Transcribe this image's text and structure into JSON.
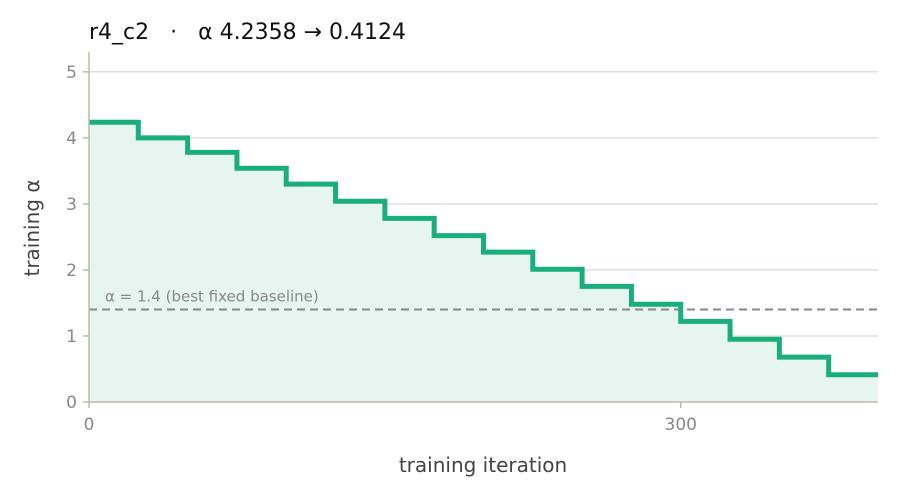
{
  "chart_data": {
    "type": "line",
    "title": "r4_c2   ·   α 4.2358 → 0.4124",
    "xlabel": "training iteration",
    "ylabel": "training α",
    "xlim": [
      0,
      400
    ],
    "ylim": [
      0,
      5.3
    ],
    "x_ticks": [
      0,
      300
    ],
    "y_ticks": [
      0,
      1,
      2,
      3,
      4,
      5
    ],
    "grid": "horizontal",
    "step": true,
    "fill_under": true,
    "colors": {
      "line": "#1aaf7a",
      "fill": "#e6f5ef",
      "baseline": "#888888",
      "grid": "#dde3d4",
      "axis": "#bbbbaa"
    },
    "series": [
      {
        "x": [
          0,
          25,
          50,
          75,
          100,
          125,
          150,
          175,
          200,
          225,
          250,
          275,
          300,
          325,
          350,
          375,
          400
        ],
        "values": [
          4.2358,
          4.0,
          3.78,
          3.54,
          3.3,
          3.04,
          2.78,
          2.52,
          2.27,
          2.01,
          1.75,
          1.48,
          1.22,
          0.95,
          0.68,
          0.4124,
          0.4124
        ]
      }
    ],
    "annotations": [
      {
        "type": "hline",
        "y": 1.4,
        "text": "α = 1.4 (best fixed baseline)"
      }
    ]
  }
}
